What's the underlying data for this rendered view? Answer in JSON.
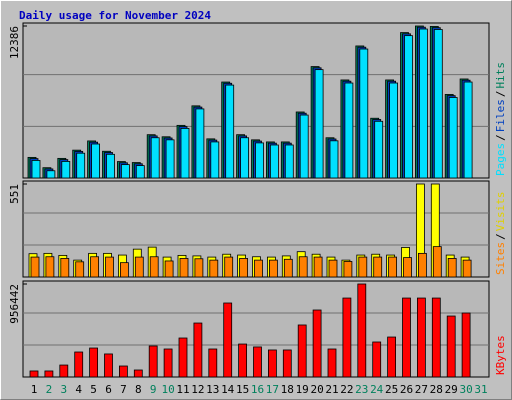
{
  "chart_data": [
    {
      "type": "bar",
      "title": "Daily usage for November 2024",
      "categories": [
        "1",
        "2",
        "3",
        "4",
        "5",
        "6",
        "7",
        "8",
        "9",
        "10",
        "11",
        "12",
        "13",
        "14",
        "15",
        "16",
        "17",
        "18",
        "19",
        "20",
        "21",
        "22",
        "23",
        "24",
        "25",
        "26",
        "27",
        "28",
        "29",
        "30",
        "31"
      ],
      "category_colors": [
        "#000000",
        "#00805c",
        "#00805c",
        "#000000",
        "#000000",
        "#000000",
        "#000000",
        "#000000",
        "#00805c",
        "#00805c",
        "#000000",
        "#000000",
        "#000000",
        "#000000",
        "#000000",
        "#00805c",
        "#00805c",
        "#000000",
        "#000000",
        "#000000",
        "#000000",
        "#000000",
        "#00805c",
        "#00805c",
        "#000000",
        "#000000",
        "#000000",
        "#000000",
        "#000000",
        "#00805c",
        "#00805c"
      ],
      "legend_separator": "/",
      "ylim": [
        0,
        12386
      ],
      "yticks": [
        12386
      ],
      "series": [
        {
          "name": "Pages",
          "color": "#00e0ff",
          "values": [
            1430,
            590,
            1350,
            2020,
            2770,
            1930,
            1090,
            1010,
            3280,
            3110,
            4040,
            5630,
            2940,
            7570,
            3280,
            2860,
            2690,
            2690,
            5130,
            8830,
            3030,
            7740,
            10510,
            4620,
            7740,
            11600,
            12140,
            12100,
            6560,
            7820,
            null
          ]
        },
        {
          "name": "Files",
          "color": "#0040c0",
          "values": [
            1580,
            740,
            1500,
            2170,
            2920,
            2080,
            1240,
            1160,
            3430,
            3260,
            4190,
            5780,
            3090,
            7720,
            3430,
            3010,
            2840,
            2840,
            5280,
            8980,
            3180,
            7890,
            10660,
            4770,
            7890,
            11750,
            12290,
            12250,
            6710,
            7970,
            null
          ]
        },
        {
          "name": "Hits",
          "color": "#00805c",
          "values": [
            1680,
            840,
            1600,
            2270,
            3020,
            2180,
            1340,
            1260,
            3530,
            3360,
            4290,
            5880,
            3190,
            7820,
            3530,
            3110,
            2940,
            2940,
            5380,
            9080,
            3280,
            7990,
            10760,
            4870,
            7990,
            11850,
            12386,
            12350,
            6810,
            8070,
            null
          ]
        }
      ]
    },
    {
      "type": "bar",
      "ylim": [
        0,
        551
      ],
      "yticks": [
        551
      ],
      "series": [
        {
          "name": "Sites",
          "color": "#ff8000",
          "values": [
            118,
            120,
            110,
            90,
            120,
            118,
            85,
            118,
            120,
            95,
            110,
            108,
            100,
            118,
            110,
            100,
            100,
            105,
            120,
            118,
            100,
            92,
            118,
            118,
            118,
            115,
            140,
            180,
            110,
            100,
            null
          ]
        },
        {
          "name": "Visits",
          "color": "#ffff00",
          "values": [
            138,
            140,
            128,
            100,
            140,
            140,
            130,
            165,
            177,
            118,
            128,
            125,
            118,
            135,
            130,
            120,
            118,
            125,
            150,
            135,
            118,
            100,
            130,
            135,
            130,
            175,
            551,
            551,
            130,
            118,
            null
          ]
        }
      ]
    },
    {
      "type": "bar",
      "ylim": [
        0,
        956442
      ],
      "yticks": [
        956442
      ],
      "series": [
        {
          "name": "KBytes",
          "color": "#ff0000",
          "values": [
            62000,
            62000,
            123000,
            257000,
            298000,
            237000,
            113000,
            72000,
            319000,
            288000,
            401000,
            555000,
            288000,
            761000,
            339000,
            309000,
            278000,
            278000,
            535000,
            689000,
            288000,
            812000,
            956442,
            360000,
            411000,
            812000,
            812000,
            812000,
            627000,
            658000,
            null
          ]
        }
      ]
    }
  ]
}
